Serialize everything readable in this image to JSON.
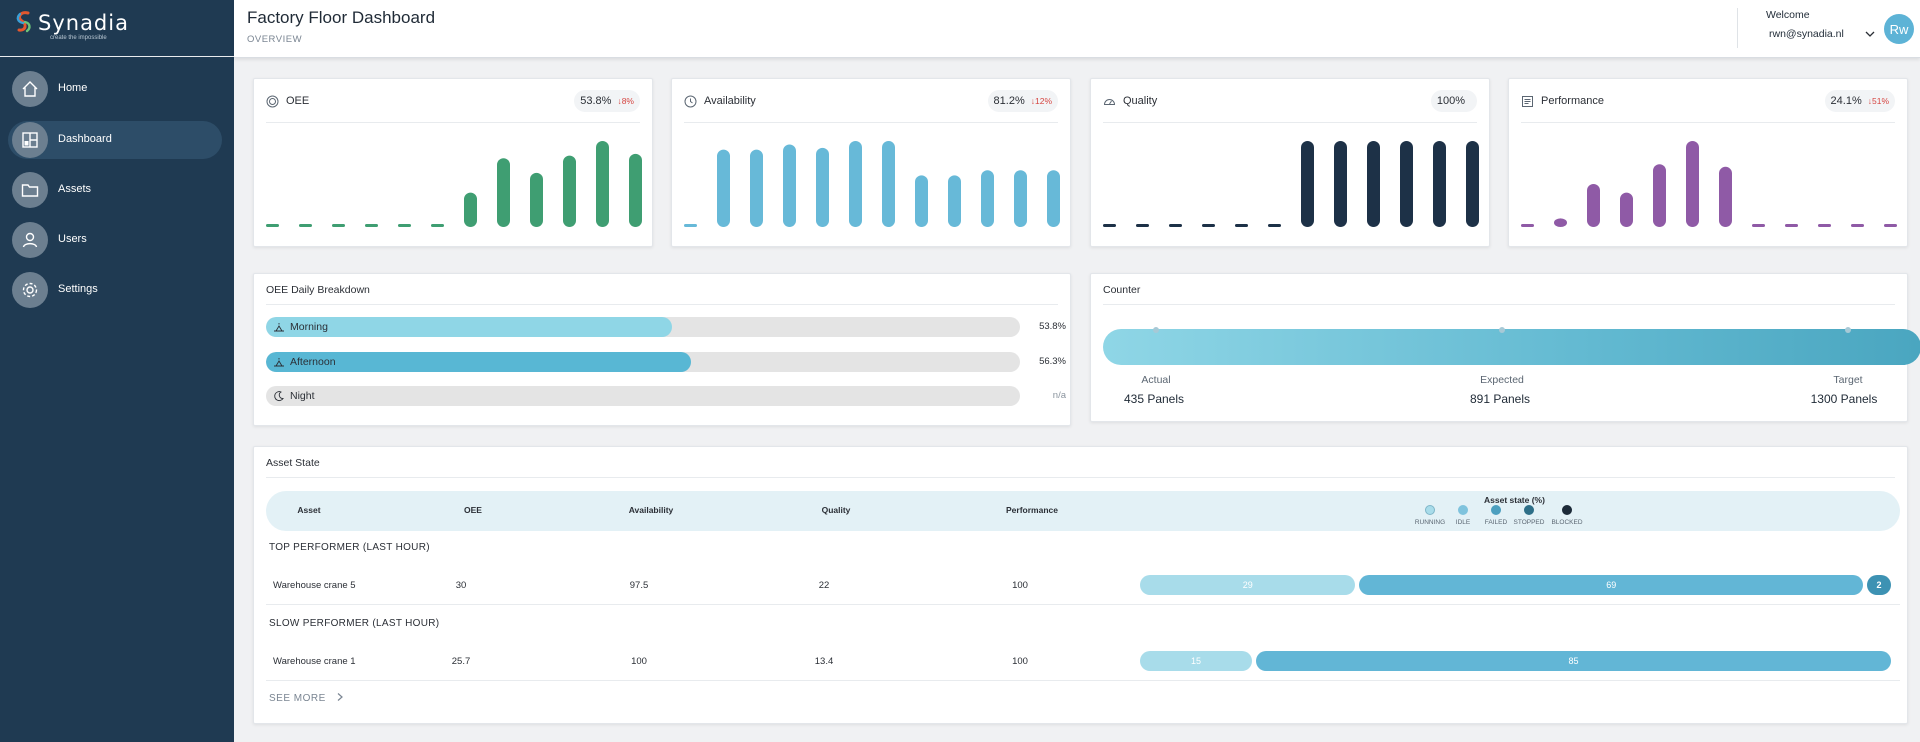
{
  "brand": {
    "name": "Synadia",
    "tagline": "create the impossible"
  },
  "nav": [
    {
      "label": "Home",
      "icon": "home-icon"
    },
    {
      "label": "Dashboard",
      "icon": "dashboard-icon",
      "active": true
    },
    {
      "label": "Assets",
      "icon": "folder-icon"
    },
    {
      "label": "Users",
      "icon": "user-icon"
    },
    {
      "label": "Settings",
      "icon": "gear-icon"
    }
  ],
  "header": {
    "title": "Factory Floor Dashboard",
    "subtitle": "OVERVIEW",
    "welcome": "Welcome",
    "email": "rwn@synadia.nl",
    "avatar": "Rw"
  },
  "kpis": [
    {
      "title": "OEE",
      "value": "53.8%",
      "delta": "↓8%",
      "color": "#3f9e72",
      "bars": [
        0,
        0,
        0,
        0,
        0,
        0,
        0.4,
        0.8,
        0.63,
        0.83,
        1.0,
        0.85
      ]
    },
    {
      "title": "Availability",
      "value": "81.2%",
      "delta": "↓12%",
      "color": "#67b9d8",
      "bars": [
        0,
        0.9,
        0.9,
        0.96,
        0.92,
        1.0,
        1.0,
        0.6,
        0.6,
        0.66,
        0.66,
        0.66
      ]
    },
    {
      "title": "Quality",
      "value": "100%",
      "delta": "",
      "color": "#1d3147",
      "bars": [
        0,
        0,
        0,
        0,
        0,
        0,
        1.0,
        1.0,
        1.0,
        1.0,
        1.0,
        1.0
      ]
    },
    {
      "title": "Performance",
      "value": "24.1%",
      "delta": "↓51%",
      "color": "#8f5aa6",
      "bars": [
        0,
        0.1,
        0.5,
        0.4,
        0.73,
        1.0,
        0.7,
        0,
        0,
        0,
        0,
        0
      ]
    }
  ],
  "breakdown": {
    "title": "OEE Daily Breakdown",
    "rows": [
      {
        "label": "Morning",
        "value": "53.8%",
        "fill": 0.538,
        "color": "#8fd6e6",
        "icon": "sunrise-icon"
      },
      {
        "label": "Afternoon",
        "value": "56.3%",
        "fill": 0.563,
        "color": "#58b7d4",
        "icon": "sun-icon"
      },
      {
        "label": "Night",
        "value": "n/a",
        "fill": 0,
        "color": "#e4e4e4",
        "icon": "moon-icon"
      }
    ]
  },
  "counter": {
    "title": "Counter",
    "marks": [
      {
        "label": "Actual",
        "value": "435  Panels"
      },
      {
        "label": "Expected",
        "value": "891  Panels"
      },
      {
        "label": "Target",
        "value": "1300  Panels"
      }
    ]
  },
  "asset_state": {
    "title": "Asset State",
    "columns": [
      "Asset",
      "OEE",
      "Availability",
      "Quality",
      "Performance"
    ],
    "legend_title": "Asset state (%)",
    "legend": [
      {
        "label": "RUNNING",
        "color": "#a8dcea"
      },
      {
        "label": "IDLE",
        "color": "#7fc3dd"
      },
      {
        "label": "FAILED",
        "color": "#4c9fbf"
      },
      {
        "label": "STOPPED",
        "color": "#2e6f88"
      },
      {
        "label": "BLOCKED",
        "color": "#1c2a38"
      }
    ],
    "groups": [
      {
        "title": "TOP PERFORMER (LAST HOUR)",
        "row": {
          "asset": "Warehouse crane 5",
          "oee": "30",
          "availability": "97.5",
          "quality": "22",
          "performance": "100",
          "segments": [
            {
              "value": "29",
              "share": 29,
              "color": "#a8dcea"
            },
            {
              "value": "69",
              "share": 69,
              "color": "#62b6d6"
            },
            {
              "value": "2",
              "share": 2,
              "color": "#3d92b3"
            }
          ]
        }
      },
      {
        "title": "SLOW PERFORMER (LAST HOUR)",
        "row": {
          "asset": "Warehouse crane 1",
          "oee": "25.7",
          "availability": "100",
          "quality": "13.4",
          "performance": "100",
          "segments": [
            {
              "value": "15",
              "share": 15,
              "color": "#a8dcea"
            },
            {
              "value": "85",
              "share": 85,
              "color": "#62b6d6"
            }
          ]
        }
      }
    ],
    "see_more": "SEE MORE"
  }
}
